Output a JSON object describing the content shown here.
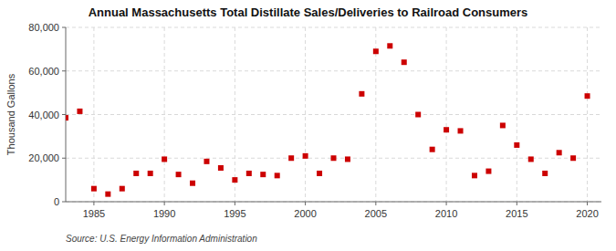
{
  "chart_data": {
    "type": "scatter",
    "title": "Annual Massachusetts Total Distillate Sales/Deliveries to Railroad Consumers",
    "y_label": "Thousand Gallons",
    "source": "Source: U.S. Energy Information Administration",
    "x": [
      1983,
      1984,
      1985,
      1986,
      1987,
      1988,
      1989,
      1990,
      1991,
      1992,
      1993,
      1994,
      1995,
      1996,
      1997,
      1998,
      1999,
      2000,
      2001,
      2002,
      2003,
      2004,
      2005,
      2006,
      2007,
      2008,
      2009,
      2010,
      2011,
      2012,
      2013,
      2014,
      2015,
      2016,
      2017,
      2018,
      2019,
      2020
    ],
    "values": [
      38500,
      41500,
      6000,
      3500,
      6000,
      13000,
      13000,
      19500,
      12500,
      8500,
      18500,
      15500,
      10000,
      13000,
      12500,
      12000,
      20000,
      21000,
      13000,
      20000,
      19500,
      49500,
      69000,
      71500,
      64000,
      40000,
      24000,
      33000,
      32500,
      12000,
      14000,
      35000,
      26000,
      19500,
      13000,
      22500,
      20000,
      48500
    ],
    "color": "#cc0000",
    "marker": "square",
    "xlim": [
      1983,
      2021
    ],
    "ylim": [
      0,
      80000
    ],
    "xticks": [
      1985,
      1990,
      1995,
      2000,
      2005,
      2010,
      2015,
      2020
    ],
    "yticks": [
      0,
      {
        "value": 20000,
        "label": "20,000"
      },
      {
        "value": 40000,
        "label": "40,000"
      },
      {
        "value": 60000,
        "label": "60,000"
      },
      {
        "value": 80000,
        "label": "80,000"
      }
    ],
    "grid": true
  }
}
